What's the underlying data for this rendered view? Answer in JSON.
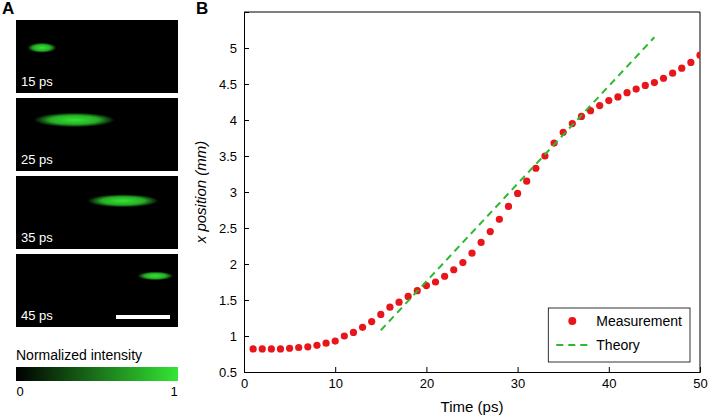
{
  "chart_data": [
    {
      "type": "image_series",
      "panel": "A",
      "frames": [
        "15 ps",
        "25 ps",
        "35 ps",
        "45 ps"
      ],
      "color": "#33e633",
      "colorbar_label": "Normalized intensity",
      "colorbar_range": [
        0,
        1
      ],
      "colorbar_ticks": [
        0,
        1
      ]
    },
    {
      "type": "scatter",
      "panel": "B",
      "x_label": "Time (ps)",
      "y_label": "x position (mm)",
      "xlim": [
        0,
        50
      ],
      "xticks": [
        0,
        10,
        20,
        30,
        40,
        50
      ],
      "ylim": [
        0.5,
        5.5
      ],
      "yticks": [
        0.5,
        1,
        1.5,
        2,
        2.5,
        3,
        3.5,
        4,
        4.5,
        5
      ],
      "grid": false,
      "legend": "lower right",
      "series": [
        {
          "name": "Measurement",
          "type": "scatter",
          "marker": "circle",
          "color": "#e8151b",
          "x": [
            1,
            2,
            3,
            4,
            5,
            6,
            7,
            8,
            9,
            10,
            11,
            12,
            13,
            14,
            15,
            16,
            17,
            18,
            19,
            20,
            21,
            22,
            23,
            24,
            25,
            26,
            27,
            28,
            29,
            30,
            31,
            32,
            33,
            34,
            35,
            36,
            37,
            38,
            39,
            40,
            41,
            42,
            43,
            44,
            45,
            46,
            47,
            48,
            49,
            50
          ],
          "values": [
            0.82,
            0.82,
            0.82,
            0.82,
            0.83,
            0.84,
            0.85,
            0.87,
            0.9,
            0.93,
            1.0,
            1.05,
            1.12,
            1.2,
            1.3,
            1.4,
            1.47,
            1.55,
            1.63,
            1.7,
            1.75,
            1.83,
            1.92,
            2.02,
            2.15,
            2.3,
            2.45,
            2.62,
            2.8,
            2.98,
            3.15,
            3.33,
            3.5,
            3.68,
            3.83,
            3.95,
            4.05,
            4.13,
            4.2,
            4.27,
            4.32,
            4.38,
            4.43,
            4.48,
            4.52,
            4.58,
            4.65,
            4.72,
            4.8,
            4.9
          ]
        },
        {
          "name": "Theory",
          "type": "line",
          "line_style": "dashed",
          "color": "#2db92d",
          "x": [
            15,
            45
          ],
          "values": [
            1.08,
            5.15
          ]
        }
      ]
    }
  ]
}
